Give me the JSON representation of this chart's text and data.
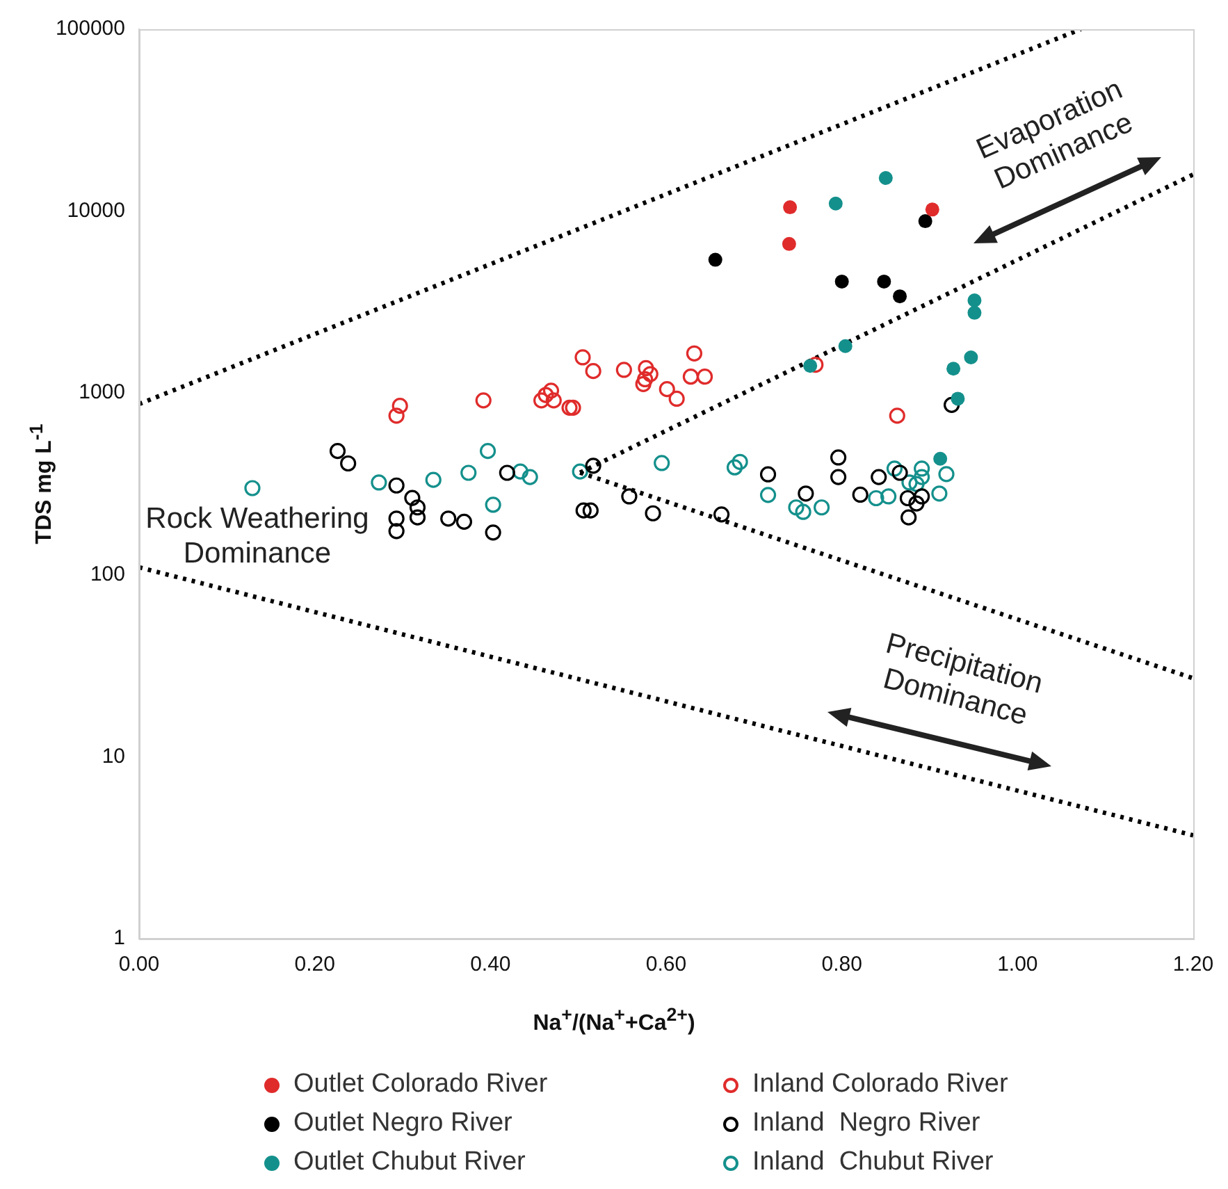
{
  "chart_data": {
    "type": "scatter",
    "xlabel": "Na$^{+}$/(Na$^{+}$+Ca$^{2+}$)",
    "ylabel": "TDS mg L$^{-1}$",
    "xlim": [
      0,
      1.2
    ],
    "xticks": [
      {
        "value": 0,
        "label": "0.00"
      },
      {
        "value": 0.2,
        "label": "0.20"
      },
      {
        "value": 0.4,
        "label": "0.40"
      },
      {
        "value": 0.6,
        "label": "0.60"
      },
      {
        "value": 0.8,
        "label": "0.80"
      },
      {
        "value": 1,
        "label": "1.00"
      },
      {
        "value": 1.2,
        "label": "1.20"
      }
    ],
    "ylim": [
      1,
      100000
    ],
    "yticks": [
      1,
      10,
      100,
      1000,
      10000,
      100000
    ],
    "log": "y",
    "grid": false,
    "legend": "bottom",
    "annotations": [
      "Evaporation Dominance",
      "Rock Weathering Dominance",
      "Precipitation Dominance"
    ],
    "series": [
      {
        "name": "Outlet Colorado River",
        "marker": "circle",
        "color": "#e02b2b",
        "x": [
          0.741,
          0.74,
          0.903
        ],
        "values": [
          10500,
          6600,
          10200
        ]
      },
      {
        "name": "Outlet Negro River",
        "marker": "circle",
        "color": "#000000",
        "x": [
          0.656,
          0.895,
          0.8,
          0.848,
          0.866
        ],
        "values": [
          5400,
          8800,
          4100,
          4100,
          3400
        ]
      },
      {
        "name": "Outlet Chubut River",
        "marker": "circle",
        "color": "#14908c",
        "x": [
          0.85,
          0.793,
          0.804,
          0.764,
          0.951,
          0.951,
          0.947,
          0.927,
          0.932,
          0.912
        ],
        "values": [
          15200,
          11000,
          1810,
          1410,
          3230,
          2760,
          1570,
          1360,
          930,
          435
        ]
      },
      {
        "name": "Inland Colorado River",
        "marker": "circle",
        "color": "#e02b2b",
        "x": [
          0.297,
          0.293,
          0.392,
          0.458,
          0.463,
          0.469,
          0.472,
          0.49,
          0.494,
          0.505,
          0.517,
          0.552,
          0.577,
          0.582,
          0.576,
          0.574,
          0.601,
          0.612,
          0.632,
          0.628,
          0.644,
          0.863,
          0.77
        ],
        "values": [
          850,
          750,
          910,
          910,
          975,
          1030,
          910,
          830,
          830,
          1570,
          1320,
          1340,
          1370,
          1270,
          1190,
          1120,
          1050,
          930,
          1650,
          1230,
          1230,
          750,
          1430
        ]
      },
      {
        "name": "Inland  Negro River",
        "marker": "circle",
        "color": "#000000",
        "x": [
          0.226,
          0.238,
          0.293,
          0.311,
          0.317,
          0.317,
          0.293,
          0.293,
          0.352,
          0.37,
          0.403,
          0.419,
          0.506,
          0.514,
          0.517,
          0.558,
          0.585,
          0.663,
          0.716,
          0.759,
          0.796,
          0.796,
          0.821,
          0.842,
          0.866,
          0.875,
          0.891,
          0.925,
          0.876,
          0.885
        ],
        "values": [
          480,
          410,
          310,
          265,
          235,
          207,
          204,
          174,
          204,
          196,
          171,
          364,
          226,
          226,
          398,
          270,
          218,
          215,
          357,
          280,
          442,
          345,
          276,
          345,
          364,
          264,
          270,
          860,
          207,
          247
        ]
      },
      {
        "name": "Inland  Chubut River",
        "marker": "circle",
        "color": "#14908c",
        "x": [
          0.129,
          0.273,
          0.335,
          0.375,
          0.397,
          0.403,
          0.434,
          0.445,
          0.502,
          0.595,
          0.678,
          0.684,
          0.716,
          0.839,
          0.853,
          0.86,
          0.877,
          0.891,
          0.891,
          0.919,
          0.911,
          0.748,
          0.756,
          0.777,
          0.885
        ],
        "values": [
          300,
          322,
          333,
          364,
          480,
          243,
          370,
          345,
          370,
          412,
          390,
          418,
          275,
          264,
          270,
          384,
          322,
          384,
          345,
          358,
          280,
          235,
          222,
          235,
          316
        ]
      },
      {
        "type": "line",
        "line_style": "dotted",
        "color": "#000000",
        "x": [
          0,
          1.072
        ],
        "values": [
          870,
          100000
        ]
      },
      {
        "type": "line",
        "line_style": "dotted",
        "color": "#000000",
        "x": [
          0.502,
          1.2
        ],
        "values": [
          365,
          15900
        ]
      },
      {
        "type": "line",
        "line_style": "dotted",
        "color": "#000000",
        "x": [
          0.502,
          1.2
        ],
        "values": [
          365,
          27
        ]
      },
      {
        "type": "line",
        "line_style": "dotted",
        "color": "#000000",
        "x": [
          0,
          1.2
        ],
        "values": [
          110,
          3.7
        ]
      }
    ]
  }
}
